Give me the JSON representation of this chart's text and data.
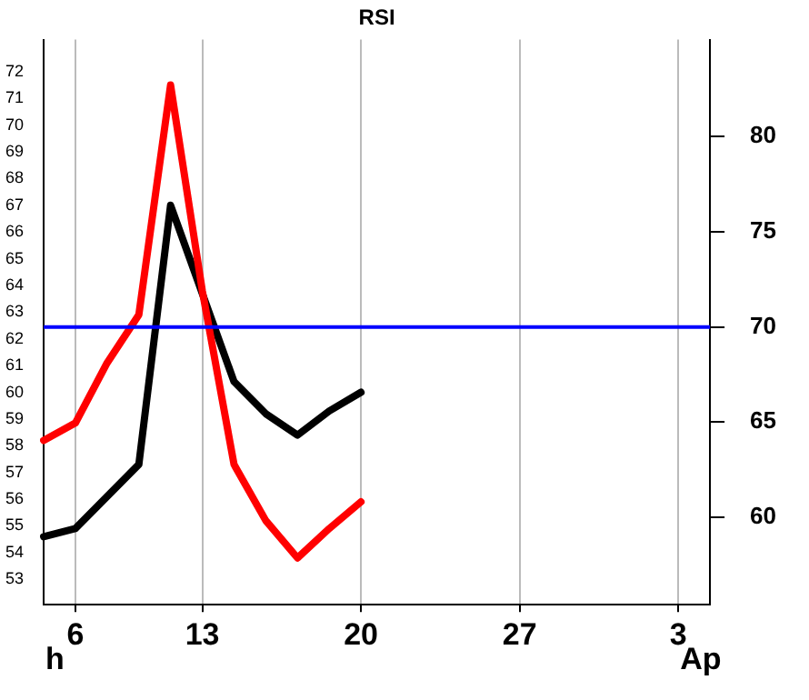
{
  "chart_data": {
    "type": "line",
    "title": "RSI",
    "categories": [
      null,
      "6",
      null,
      null,
      null,
      "13",
      null,
      null,
      null,
      null,
      "20",
      null,
      null,
      null,
      null,
      "27",
      null,
      null,
      null,
      null,
      "3",
      null
    ],
    "series": [
      {
        "color": "#ff0000",
        "values": [
          58.2,
          58.85,
          61.1,
          62.9,
          71.5,
          63.8,
          57.3,
          55.2,
          53.8,
          54.9,
          55.9,
          null,
          null,
          null,
          null,
          null,
          null,
          null,
          null,
          null,
          null,
          null
        ]
      },
      {
        "color": "#000000",
        "values": [
          54.6,
          54.9,
          56.1,
          57.3,
          67.0,
          63.7,
          60.4,
          59.2,
          58.4,
          59.3,
          60.0,
          null,
          null,
          null,
          null,
          null,
          null,
          null,
          null,
          null,
          null,
          null
        ]
      }
    ],
    "ylim": [
      52.05,
      73.2
    ],
    "yticks": [
      53,
      54,
      55,
      56,
      57,
      58,
      59,
      60,
      61,
      62,
      63,
      64,
      65,
      66,
      67,
      68,
      69,
      70,
      71,
      72
    ],
    "y2lim": [
      55.4,
      85.1
    ],
    "y2ticks": [
      60,
      65,
      70,
      75,
      80
    ],
    "ref_lines": [
      {
        "axis": "y2",
        "value": 70,
        "color": "#0000ff"
      }
    ],
    "annotations": [
      "h",
      "Ap"
    ],
    "grid": "x",
    "line_style": "solid",
    "marker": "none",
    "legend": false
  }
}
